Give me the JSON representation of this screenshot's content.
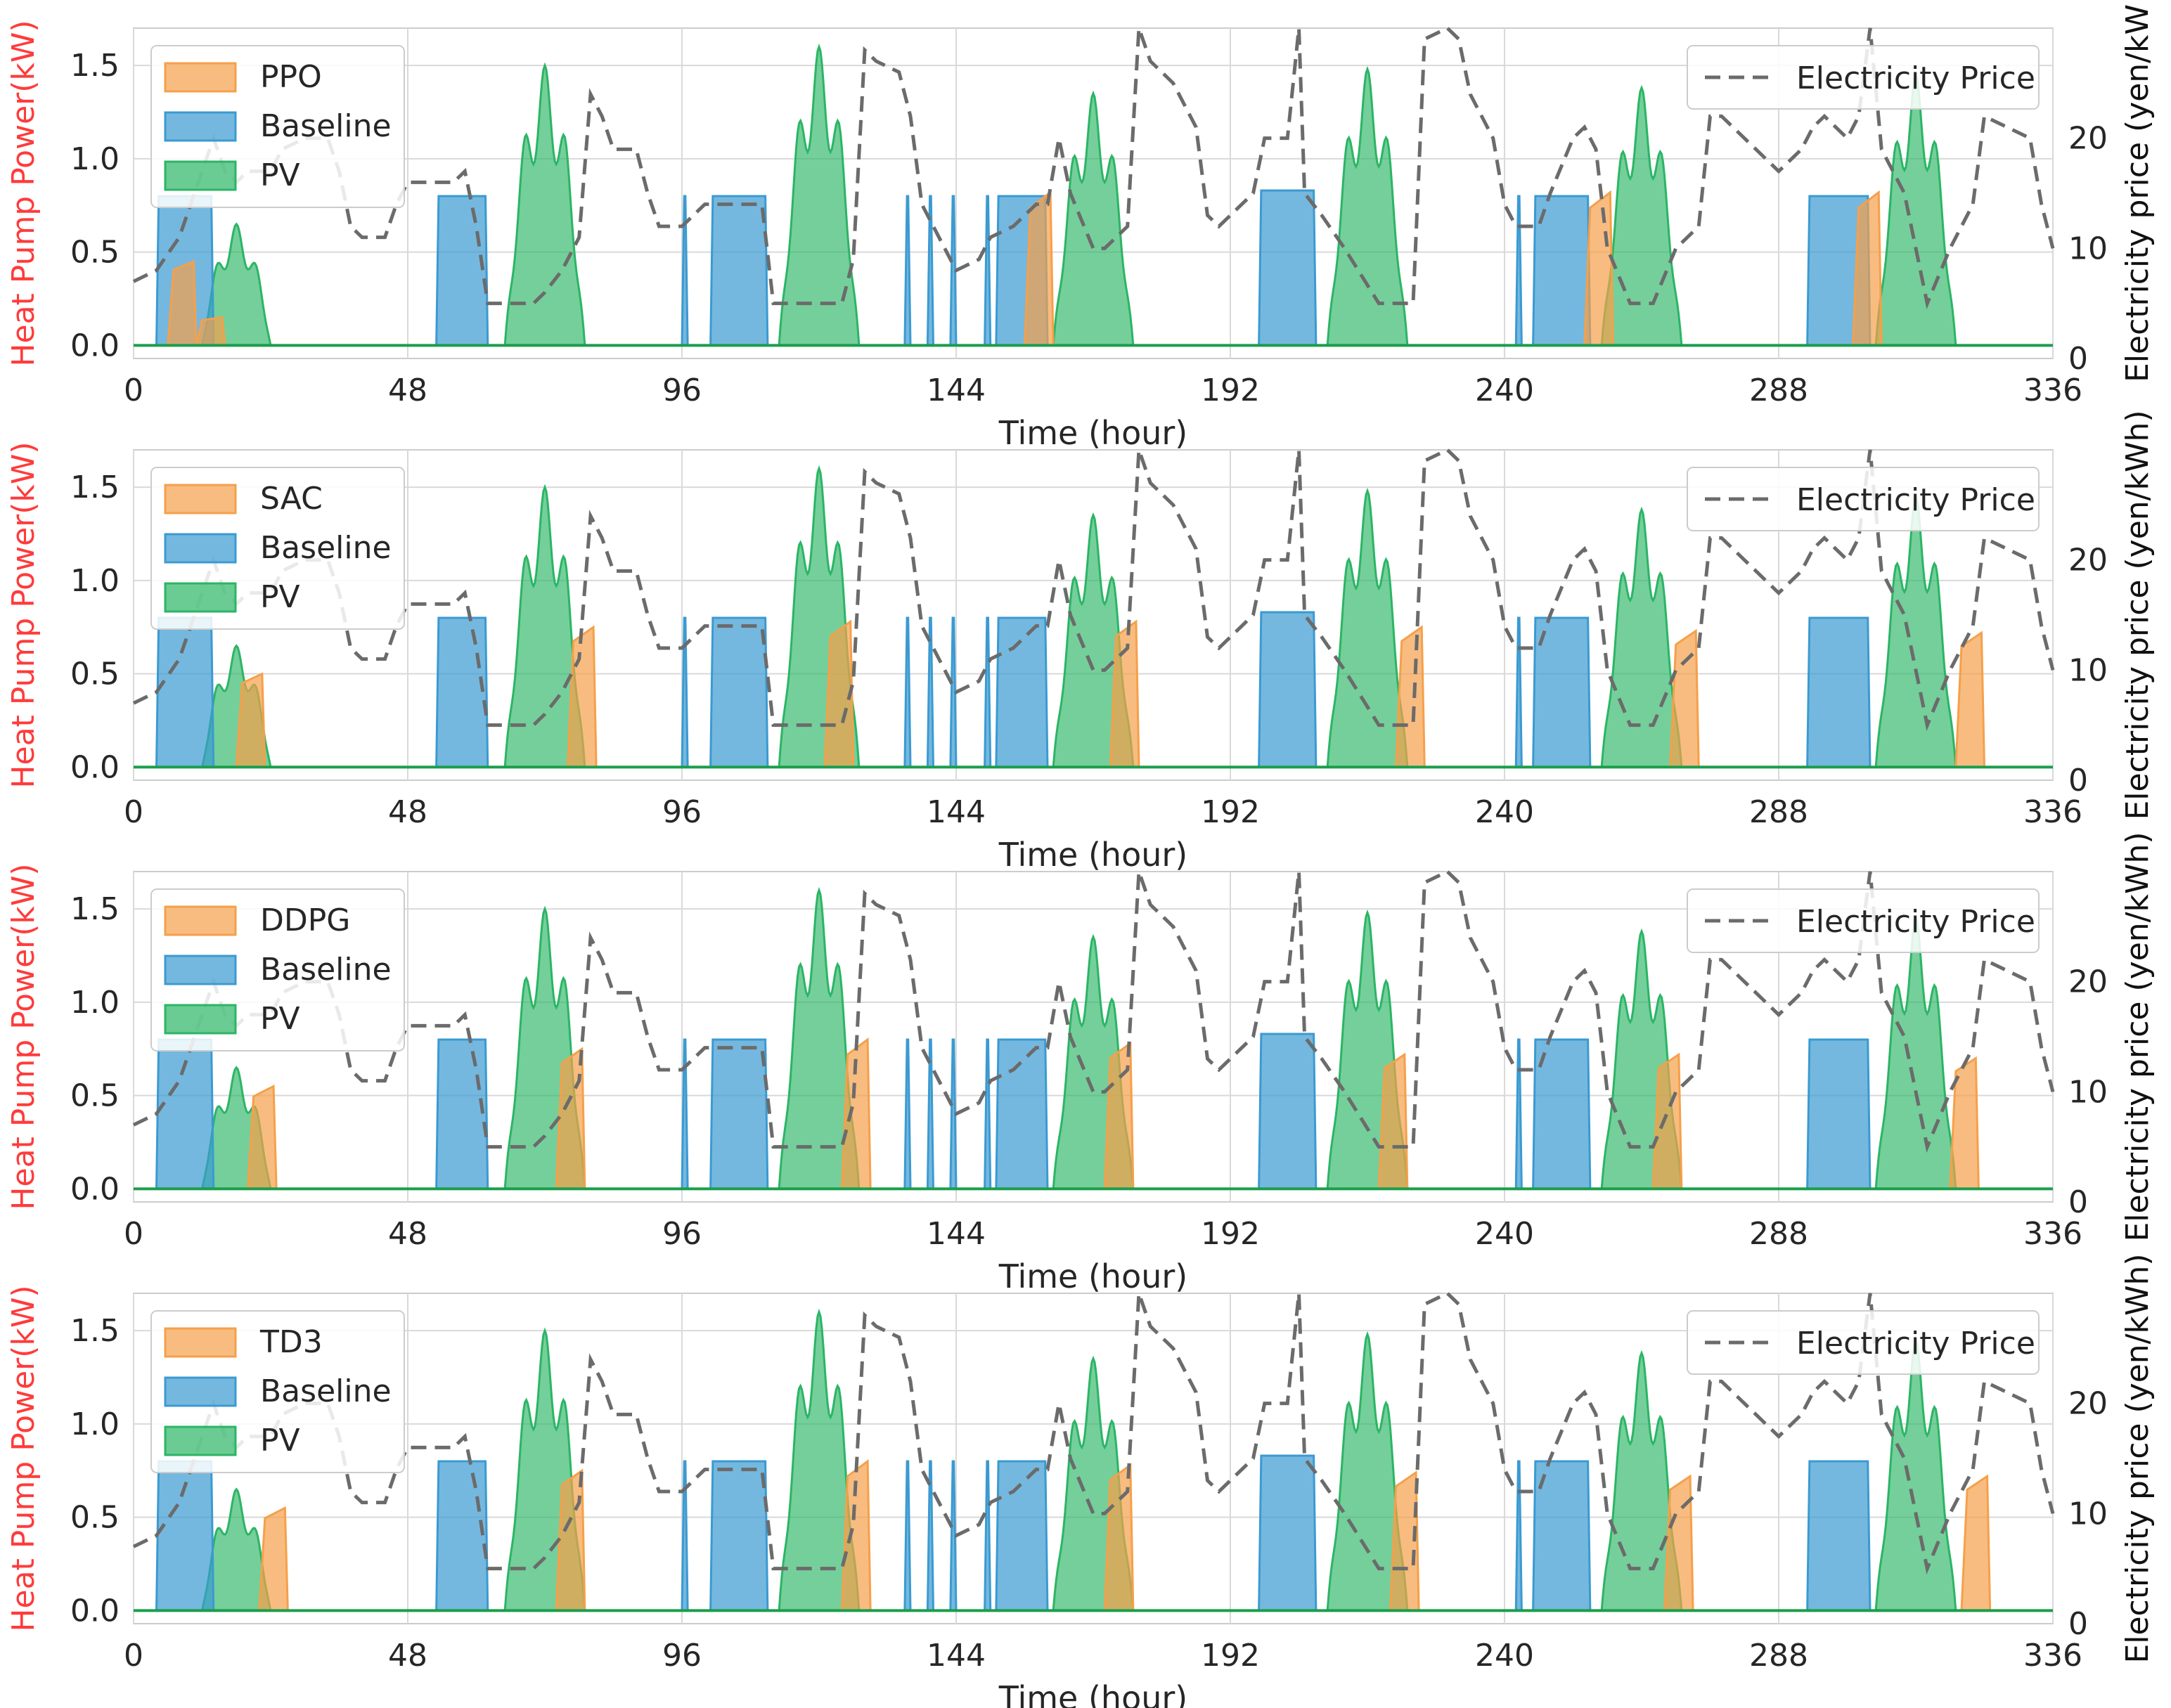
{
  "figure": {
    "subplot_count": 4
  },
  "chart_data": [
    {
      "type": "area",
      "title": "",
      "xlabel": "Time (hour)",
      "ylabel": "Heat Pump Power(kW)",
      "ylabel_right": "Electricity price (yen/kW",
      "xlim": [
        0,
        336
      ],
      "ylim": [
        -0.07,
        1.7
      ],
      "ylim_right": [
        0,
        30
      ],
      "xticks": [
        "0",
        "48",
        "96",
        "144",
        "192",
        "240",
        "288",
        "336"
      ],
      "yticks": [
        "0.0",
        "0.5",
        "1.0",
        "1.5"
      ],
      "yticks_right": [
        "0",
        "10",
        "20"
      ],
      "grid": true,
      "legend_left": [
        "PPO",
        "Baseline",
        "PV"
      ],
      "legend_right": [
        "Electricity Price"
      ],
      "agent": "PPO",
      "agent_segments": [
        [
          10,
          0,
          0.45
        ],
        [
          15,
          0,
          0.15
        ],
        [
          160,
          0,
          0.82
        ],
        [
          258,
          0,
          0.82
        ],
        [
          305,
          0,
          0.82
        ]
      ],
      "colors": {
        "agent": "#f5a04a",
        "baseline": "#3b9ad1",
        "pv": "#2bb565",
        "price": "#6b6b6b"
      }
    },
    {
      "type": "area",
      "title": "",
      "xlabel": "Time (hour)",
      "ylabel": "Heat Pump Power(kW)",
      "ylabel_right": "Electricity price (yen/kWh)",
      "xlim": [
        0,
        336
      ],
      "ylim": [
        -0.07,
        1.7
      ],
      "ylim_right": [
        0,
        30
      ],
      "xticks": [
        "0",
        "48",
        "96",
        "144",
        "192",
        "240",
        "288",
        "336"
      ],
      "yticks": [
        "0.0",
        "0.5",
        "1.0",
        "1.5"
      ],
      "yticks_right": [
        "0",
        "10",
        "20"
      ],
      "grid": true,
      "legend_left": [
        "SAC",
        "Baseline",
        "PV"
      ],
      "legend_right": [
        "Electricity Price"
      ],
      "agent": "SAC",
      "agent_segments": [
        [
          22,
          0,
          0.5
        ],
        [
          80,
          0,
          0.75
        ],
        [
          125,
          0,
          0.78
        ],
        [
          175,
          0,
          0.78
        ],
        [
          225,
          0,
          0.75
        ],
        [
          273,
          0,
          0.73
        ],
        [
          323,
          0,
          0.72
        ]
      ],
      "colors": {
        "agent": "#f5a04a",
        "baseline": "#3b9ad1",
        "pv": "#2bb565",
        "price": "#6b6b6b"
      }
    },
    {
      "type": "area",
      "title": "",
      "xlabel": "Time (hour)",
      "ylabel": "Heat Pump Power(kW)",
      "ylabel_right": "Electricity price (yen/kWh)",
      "xlim": [
        0,
        336
      ],
      "ylim": [
        -0.07,
        1.7
      ],
      "ylim_right": [
        0,
        30
      ],
      "xticks": [
        "0",
        "48",
        "96",
        "144",
        "192",
        "240",
        "288",
        "336"
      ],
      "yticks": [
        "0.0",
        "0.5",
        "1.0",
        "1.5"
      ],
      "yticks_right": [
        "0",
        "10",
        "20"
      ],
      "grid": true,
      "legend_left": [
        "DDPG",
        "Baseline",
        "PV"
      ],
      "legend_right": [
        "Electricity Price"
      ],
      "agent": "DDPG",
      "agent_segments": [
        [
          24,
          0,
          0.55
        ],
        [
          78,
          0,
          0.75
        ],
        [
          128,
          0,
          0.8
        ],
        [
          174,
          0,
          0.78
        ],
        [
          222,
          0,
          0.72
        ],
        [
          270,
          0,
          0.72
        ],
        [
          322,
          0,
          0.7
        ]
      ],
      "colors": {
        "agent": "#f5a04a",
        "baseline": "#3b9ad1",
        "pv": "#2bb565",
        "price": "#6b6b6b"
      }
    },
    {
      "type": "area",
      "title": "",
      "xlabel": "Time (hour)",
      "ylabel": "Heat Pump Power(kW)",
      "ylabel_right": "Electricity price (yen/kWh)",
      "xlim": [
        0,
        336
      ],
      "ylim": [
        -0.07,
        1.7
      ],
      "ylim_right": [
        0,
        30
      ],
      "xticks": [
        "0",
        "48",
        "96",
        "144",
        "192",
        "240",
        "288",
        "336"
      ],
      "yticks": [
        "0.0",
        "0.5",
        "1.0",
        "1.5"
      ],
      "yticks_right": [
        "0",
        "10",
        "20"
      ],
      "grid": true,
      "legend_left": [
        "TD3",
        "Baseline",
        "PV"
      ],
      "legend_right": [
        "Electricity Price"
      ],
      "agent": "TD3",
      "agent_segments": [
        [
          26,
          0,
          0.55
        ],
        [
          78,
          0,
          0.75
        ],
        [
          128,
          0,
          0.8
        ],
        [
          174,
          0,
          0.78
        ],
        [
          224,
          0,
          0.74
        ],
        [
          272,
          0,
          0.72
        ],
        [
          324,
          0,
          0.72
        ]
      ],
      "colors": {
        "agent": "#f5a04a",
        "baseline": "#3b9ad1",
        "pv": "#2bb565",
        "price": "#6b6b6b"
      }
    }
  ],
  "shared_series": {
    "baseline_blocks": [
      [
        4,
        14,
        0.8
      ],
      [
        53,
        62,
        0.8
      ],
      [
        96,
        97,
        0.8
      ],
      [
        101,
        111,
        0.8
      ],
      [
        135,
        136,
        0.8
      ],
      [
        139,
        140,
        0.8
      ],
      [
        143,
        144,
        0.8
      ],
      [
        149,
        150,
        0.8
      ],
      [
        151,
        160,
        0.8
      ],
      [
        197,
        207,
        0.83
      ],
      [
        242,
        243,
        0.8
      ],
      [
        245,
        255,
        0.8
      ],
      [
        293,
        304,
        0.8
      ]
    ],
    "pv_days": [
      {
        "center": 18,
        "peak": 0.65,
        "w": 6
      },
      {
        "center": 72,
        "peak": 1.5,
        "w": 7
      },
      {
        "center": 120,
        "peak": 1.6,
        "w": 7
      },
      {
        "center": 168,
        "peak": 1.35,
        "w": 7
      },
      {
        "center": 216,
        "peak": 1.48,
        "w": 7
      },
      {
        "center": 264,
        "peak": 1.38,
        "w": 7
      },
      {
        "center": 312,
        "peak": 1.45,
        "w": 7
      }
    ],
    "price": [
      [
        0,
        7
      ],
      [
        4,
        8
      ],
      [
        8,
        11
      ],
      [
        10,
        14
      ],
      [
        12,
        17
      ],
      [
        14,
        20
      ],
      [
        16,
        17
      ],
      [
        18,
        16
      ],
      [
        20,
        17
      ],
      [
        24,
        17
      ],
      [
        26,
        19
      ],
      [
        30,
        20
      ],
      [
        34,
        20
      ],
      [
        36,
        17
      ],
      [
        38,
        12
      ],
      [
        40,
        11
      ],
      [
        44,
        11
      ],
      [
        46,
        14
      ],
      [
        48,
        16
      ],
      [
        56,
        16
      ],
      [
        58,
        17
      ],
      [
        60,
        12
      ],
      [
        62,
        5
      ],
      [
        70,
        5
      ],
      [
        72,
        6
      ],
      [
        75,
        8
      ],
      [
        78,
        11
      ],
      [
        80,
        24
      ],
      [
        82,
        22
      ],
      [
        84,
        19
      ],
      [
        88,
        19
      ],
      [
        90,
        15
      ],
      [
        92,
        12
      ],
      [
        96,
        12
      ],
      [
        100,
        14
      ],
      [
        110,
        14
      ],
      [
        112,
        5
      ],
      [
        124,
        5
      ],
      [
        126,
        9
      ],
      [
        128,
        28
      ],
      [
        130,
        27
      ],
      [
        134,
        26
      ],
      [
        136,
        22
      ],
      [
        138,
        14
      ],
      [
        140,
        12
      ],
      [
        144,
        8
      ],
      [
        148,
        9
      ],
      [
        150,
        11
      ],
      [
        154,
        12
      ],
      [
        158,
        14
      ],
      [
        160,
        14
      ],
      [
        162,
        20
      ],
      [
        164,
        15
      ],
      [
        168,
        10
      ],
      [
        170,
        10
      ],
      [
        174,
        12
      ],
      [
        176,
        30
      ],
      [
        178,
        27
      ],
      [
        182,
        25
      ],
      [
        186,
        21
      ],
      [
        188,
        13
      ],
      [
        190,
        12
      ],
      [
        194,
        14
      ],
      [
        196,
        15
      ],
      [
        198,
        20
      ],
      [
        202,
        20
      ],
      [
        204,
        30
      ],
      [
        205,
        15
      ],
      [
        208,
        13
      ],
      [
        212,
        10
      ],
      [
        218,
        5
      ],
      [
        224,
        5
      ],
      [
        226,
        29
      ],
      [
        230,
        30
      ],
      [
        232,
        29
      ],
      [
        234,
        24
      ],
      [
        238,
        20
      ],
      [
        240,
        14
      ],
      [
        242,
        12
      ],
      [
        246,
        12
      ],
      [
        248,
        15
      ],
      [
        252,
        20
      ],
      [
        254,
        21
      ],
      [
        256,
        19
      ],
      [
        258,
        10
      ],
      [
        262,
        5
      ],
      [
        266,
        5
      ],
      [
        270,
        10
      ],
      [
        274,
        12
      ],
      [
        276,
        22
      ],
      [
        278,
        22
      ],
      [
        282,
        20
      ],
      [
        286,
        18
      ],
      [
        288,
        17
      ],
      [
        292,
        19
      ],
      [
        294,
        21
      ],
      [
        296,
        22
      ],
      [
        300,
        20
      ],
      [
        302,
        22
      ],
      [
        304,
        30
      ],
      [
        306,
        19
      ],
      [
        310,
        15
      ],
      [
        314,
        5
      ],
      [
        318,
        10
      ],
      [
        320,
        12
      ],
      [
        322,
        14
      ],
      [
        324,
        22
      ],
      [
        328,
        21
      ],
      [
        332,
        20
      ],
      [
        334,
        14
      ],
      [
        336,
        10
      ]
    ]
  }
}
